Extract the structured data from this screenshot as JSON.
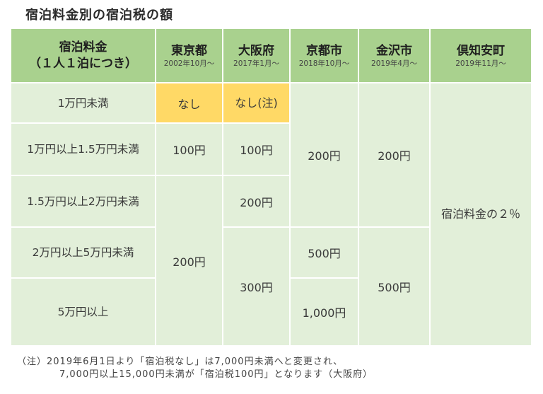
{
  "title": "宿泊料金別の宿泊税の額",
  "header": {
    "fee_line1": "宿泊料金",
    "fee_line2": "（１人１泊につき）",
    "cities": [
      {
        "name": "東京都",
        "since": "2002年10月～"
      },
      {
        "name": "大阪府",
        "since": "2017年1月～"
      },
      {
        "name": "京都市",
        "since": "2018年10月～"
      },
      {
        "name": "金沢市",
        "since": "2019年4月～"
      },
      {
        "name": "倶知安町",
        "since": "2019年11月～"
      }
    ]
  },
  "tiers": [
    "1万円未満",
    "1万円以上1.5万円未満",
    "1.5万円以上2万円未満",
    "2万円以上5万円未満",
    "5万円以上"
  ],
  "tokyo": [
    "なし",
    "100円",
    "200円"
  ],
  "osaka": [
    "なし(注)",
    "100円",
    "200円",
    "300円"
  ],
  "kyoto": [
    "200円",
    "500円",
    "1,000円"
  ],
  "kanazawa": [
    "200円",
    "500円"
  ],
  "kutchan": "宿泊料金の２％",
  "note_line1": "（注）2019年6月1日より「宿泊税なし」は7,000円未満へと変更され、",
  "note_line2": "7,000円以上15,000円未満が「宿泊税100円」となります（大阪府）",
  "colors": {
    "header_bg": "#a9d18e",
    "cell_bg": "#e2efd9",
    "highlight_bg": "#ffd966"
  }
}
